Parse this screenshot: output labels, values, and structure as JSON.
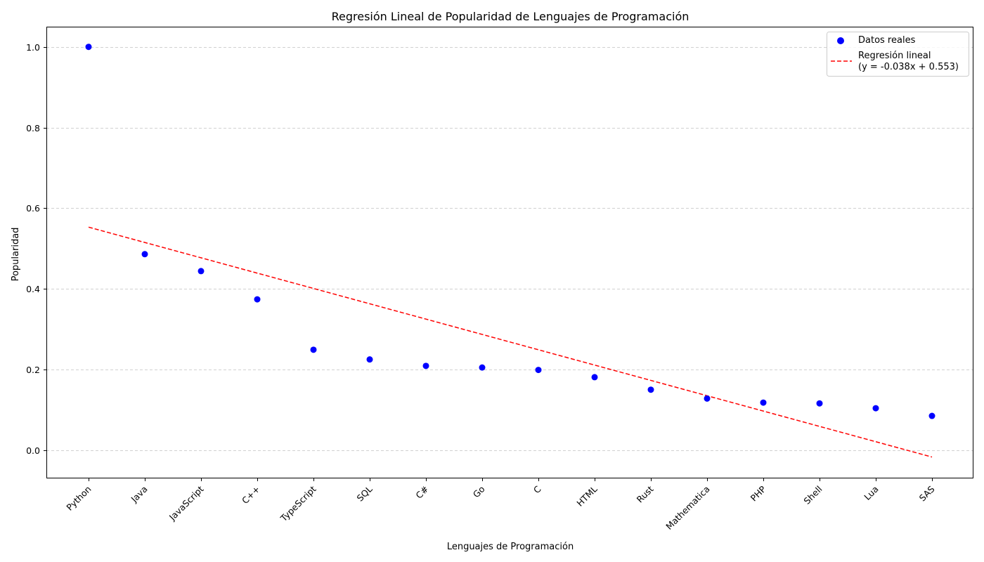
{
  "chart_data": {
    "type": "scatter",
    "title": "Regresión Lineal de Popularidad de Lenguajes de Programación",
    "xlabel": "Lenguajes de Programación",
    "ylabel": "Popularidad",
    "categories": [
      "Python",
      "Java",
      "JavaScript",
      "C++",
      "TypeScript",
      "SQL",
      "C#",
      "Go",
      "C",
      "HTML",
      "Rust",
      "Mathematica",
      "PHP",
      "Shell",
      "Lua",
      "SAS"
    ],
    "series": [
      {
        "name": "Datos reales",
        "type": "scatter",
        "color": "#0000ff",
        "values": [
          1.0,
          0.486,
          0.444,
          0.374,
          0.249,
          0.225,
          0.209,
          0.205,
          0.199,
          0.181,
          0.15,
          0.128,
          0.118,
          0.116,
          0.104,
          0.085
        ]
      },
      {
        "name": "Regresión lineal\n(y = -0.038x + 0.553)",
        "type": "line",
        "style": "dashed",
        "color": "#ff0000",
        "slope": -0.038,
        "intercept": 0.553
      }
    ],
    "yticks": [
      0.0,
      0.2,
      0.4,
      0.6,
      0.8,
      1.0
    ],
    "ylim": [
      -0.07,
      1.05
    ],
    "grid": "y-axis dashed",
    "legend": "top-right",
    "legend_lines": [
      "Datos reales",
      "Regresión lineal",
      "(y = -0.038x + 0.553)"
    ]
  }
}
